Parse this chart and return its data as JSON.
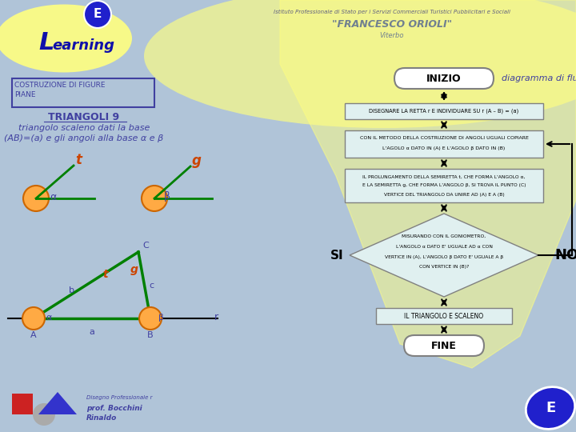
{
  "bg_color": "#b0c4d8",
  "title_box_text": "COSTRUZIONE DI FIGURE\nPIANE",
  "subtitle": "TRIANGOLI 9",
  "desc_line1": "triangolo scaleno dati la base",
  "desc_line2": "(AB)=(a) e gli angoli alla base α e β",
  "header_inst": "Istituto Professionale di Stato per i Servizi Commerciali Turistici Pubblicitari e Sociali",
  "header_school": "\"FRANCESCO ORIOLI\"",
  "header_city": "Viterbo",
  "inizio_text": "INIZIO",
  "diagramma_text": "diagramma di flusso",
  "box1_text": "DISEGNARE LA RETTA r E INDIVIDUARE SU r (A – B) = (a)",
  "box2_line1": "CON IL METODO DELLA COSTRUZIONE DI ANGOLI UGUALI COPIARE",
  "box2_line2": "L'AGOLO α DATO IN (A) E L'AGOLO β DATO IN (B)",
  "box3_line1": "IL PROLUNGAMENTO DELLA SEMIRETTA t, CHE FORMA L'ANGOLO α,",
  "box3_line2": "E LA SEMIRETTA g, CHE FORMA L'ANGOLO β, SI TROVA IL PUNTO (C)",
  "box3_line3": "VERTICE DEL TRIANGOLO DA UNIRE AD (A) E A (B)",
  "diamond_line1": "MISURANDO CON IL GONIOMETRO,",
  "diamond_line2": "L'ANGOLO α DATO E' UGUALE AD α CON",
  "diamond_line3": "VERTICE IN (A), L'ANGOLO β DATO E' UGUALE A β",
  "diamond_line4": "CON VERTICE IN (B)?",
  "si_text": "SI",
  "no_text": "NO",
  "box4_text": "IL TRIANGOLO E SCALENO",
  "fine_text": "FINE",
  "flow_box_color": "#e0f0f0",
  "flow_box_border": "#808080",
  "text_color_blue": "#4040a0",
  "text_color_dark": "#303030",
  "orange_color": "#cc4400",
  "green_line_color": "#008000",
  "yellow_color": "#ffff80"
}
